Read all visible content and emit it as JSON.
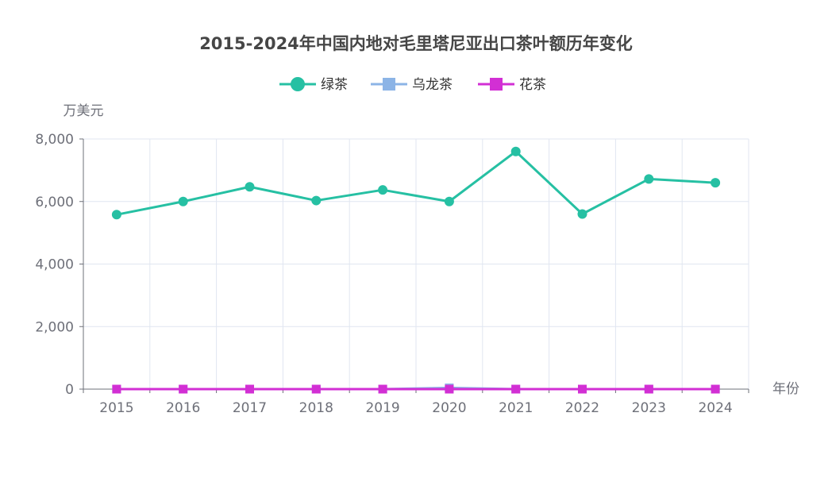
{
  "chart_data": {
    "type": "line",
    "title": "2015-2024年中国内地对毛里塔尼亚出口茶叶额历年变化",
    "xlabel": "年份",
    "ylabel": "万美元",
    "ylim": [
      0,
      8000
    ],
    "yticks": [
      "0",
      "2,000",
      "4,000",
      "6,000",
      "8,000"
    ],
    "ytick_values": [
      0,
      2000,
      4000,
      6000,
      8000
    ],
    "categories": [
      "2015",
      "2016",
      "2017",
      "2018",
      "2019",
      "2020",
      "2021",
      "2022",
      "2023",
      "2024"
    ],
    "grid": true,
    "legend_position": "top-center",
    "series": [
      {
        "name": "绿茶",
        "color": "#26c0a3",
        "marker": "circle",
        "values": [
          5580,
          6000,
          6470,
          6030,
          6370,
          6000,
          7600,
          5600,
          6720,
          6600
        ]
      },
      {
        "name": "乌龙茶",
        "color": "#8cb4e6",
        "marker": "square",
        "values": [
          0,
          0,
          0,
          0,
          0,
          40,
          0,
          0,
          0,
          0
        ]
      },
      {
        "name": "花茶",
        "color": "#d22fd4",
        "marker": "square",
        "values": [
          0,
          0,
          0,
          0,
          0,
          0,
          0,
          0,
          0,
          0
        ]
      }
    ]
  }
}
